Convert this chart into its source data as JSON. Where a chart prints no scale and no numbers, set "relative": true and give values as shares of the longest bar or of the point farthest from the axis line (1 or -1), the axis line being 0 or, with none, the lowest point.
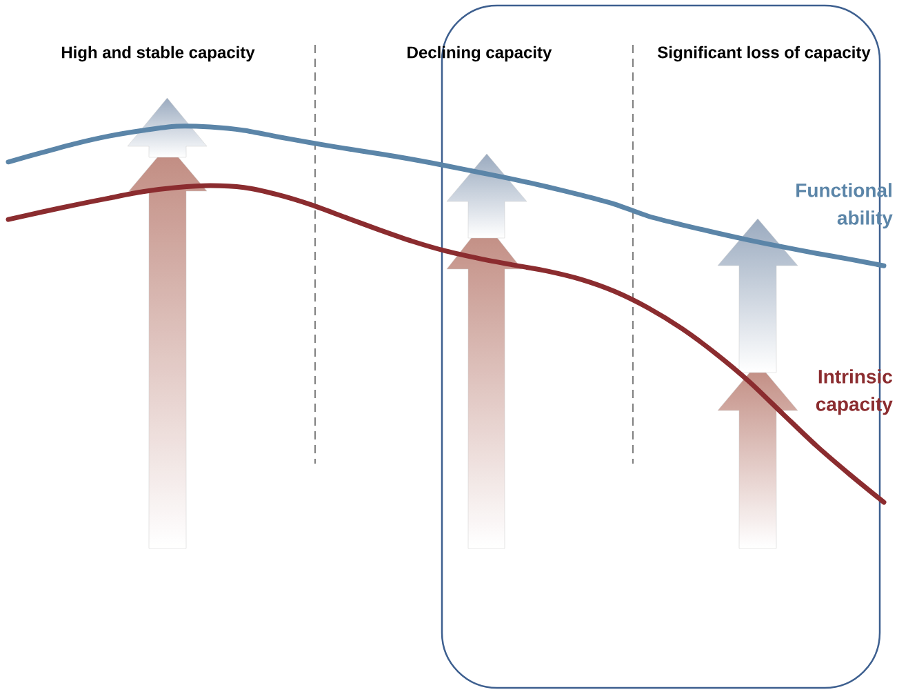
{
  "chart_data": {
    "type": "line",
    "relative": true,
    "marker": "none",
    "line_style": "solid",
    "categories": [
      null,
      null,
      null,
      null,
      null,
      null,
      null,
      null,
      null,
      null,
      null,
      null,
      null,
      null,
      null,
      null,
      null,
      null,
      null,
      null,
      null,
      null,
      null,
      null,
      null,
      null,
      null
    ],
    "series": [
      {
        "name": "Functional ability",
        "color": "#5b85a8",
        "values": [
          0.905,
          0.93,
          0.954,
          0.974,
          0.989,
          1.0,
          0.998,
          0.989,
          0.972,
          0.956,
          0.941,
          0.927,
          0.912,
          0.895,
          0.877,
          0.859,
          0.839,
          0.817,
          0.793,
          0.761,
          0.738,
          0.717,
          0.697,
          0.679,
          0.662,
          0.646,
          0.629
        ]
      },
      {
        "name": "Intrinsic capacity",
        "color": "#8b2c2f",
        "values": [
          0.752,
          0.772,
          0.791,
          0.809,
          0.826,
          0.837,
          0.842,
          0.837,
          0.818,
          0.791,
          0.758,
          0.725,
          0.694,
          0.668,
          0.648,
          0.631,
          0.615,
          0.593,
          0.561,
          0.517,
          0.462,
          0.396,
          0.321,
          0.235,
          0.15,
          0.073,
          0.0
        ]
      }
    ],
    "annotations": [
      "High and stable capacity",
      "Declining capacity",
      "Significant loss of capacity"
    ]
  }
}
